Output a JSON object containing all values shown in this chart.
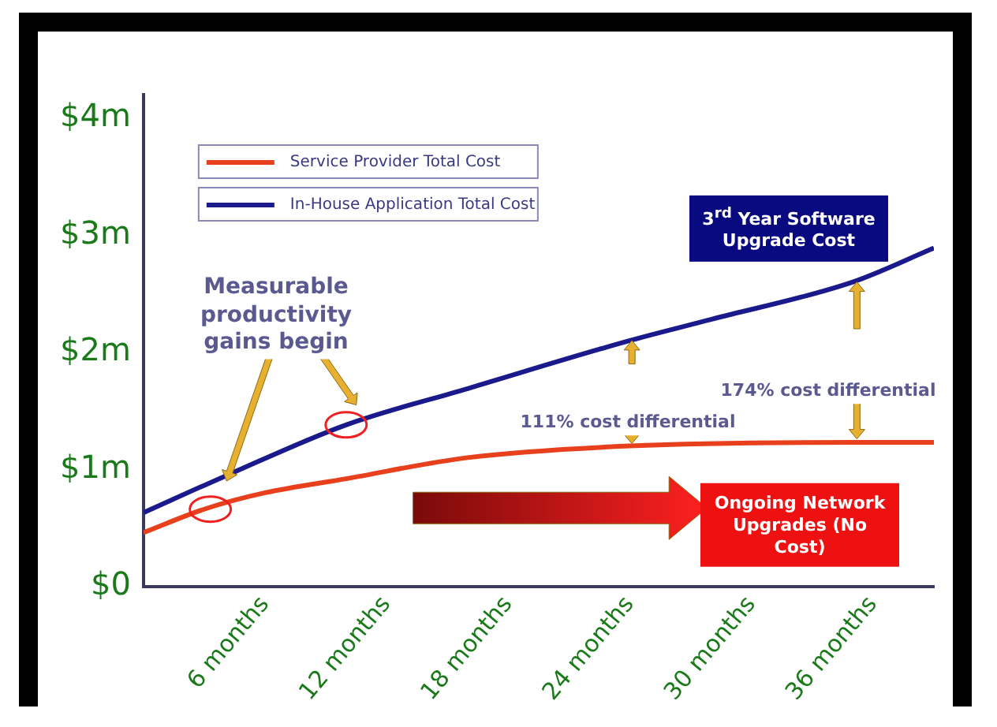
{
  "chart_data": {
    "type": "line",
    "x": [
      0,
      4,
      10,
      16,
      24,
      28,
      35,
      39
    ],
    "series": [
      {
        "name": "Service Provider Total Cost",
        "color": "#e8401c",
        "x": [
          0,
          3,
          6,
          10,
          16,
          24,
          35,
          39
        ],
        "values": [
          0.46,
          0.66,
          0.8,
          0.92,
          1.1,
          1.2,
          1.23,
          1.23
        ]
      },
      {
        "name": "In-House Application Total Cost",
        "color": "#1a1a8c",
        "values": [
          0.63,
          0.94,
          1.38,
          1.69,
          2.1,
          2.28,
          2.6,
          2.89
        ]
      }
    ],
    "xlim": [
      0,
      39
    ],
    "xticks": [
      {
        "value": 6,
        "label": "6 months"
      },
      {
        "value": 12,
        "label": "12 months"
      },
      {
        "value": 18,
        "label": "18 months"
      },
      {
        "value": 24,
        "label": "24 months"
      },
      {
        "value": 30,
        "label": "30 months"
      },
      {
        "value": 36,
        "label": "36 months"
      }
    ],
    "ylim": [
      0,
      4.2
    ],
    "yticks": [
      {
        "value": 0,
        "label": "$0"
      },
      {
        "value": 1,
        "label": "$1m"
      },
      {
        "value": 2,
        "label": "$2m"
      },
      {
        "value": 3,
        "label": "$3m"
      },
      {
        "value": 4,
        "label": "$4m"
      }
    ],
    "annotations": [
      "Measurable productivity gains begin",
      "111% cost differential",
      "174% cost differential",
      "3$^{rd}$ Year Software Upgrade Cost",
      "Ongoing Network Upgrades (No Cost)"
    ],
    "legend": "top left",
    "grid": false,
    "marker": "none",
    "line_style": "solid"
  }
}
